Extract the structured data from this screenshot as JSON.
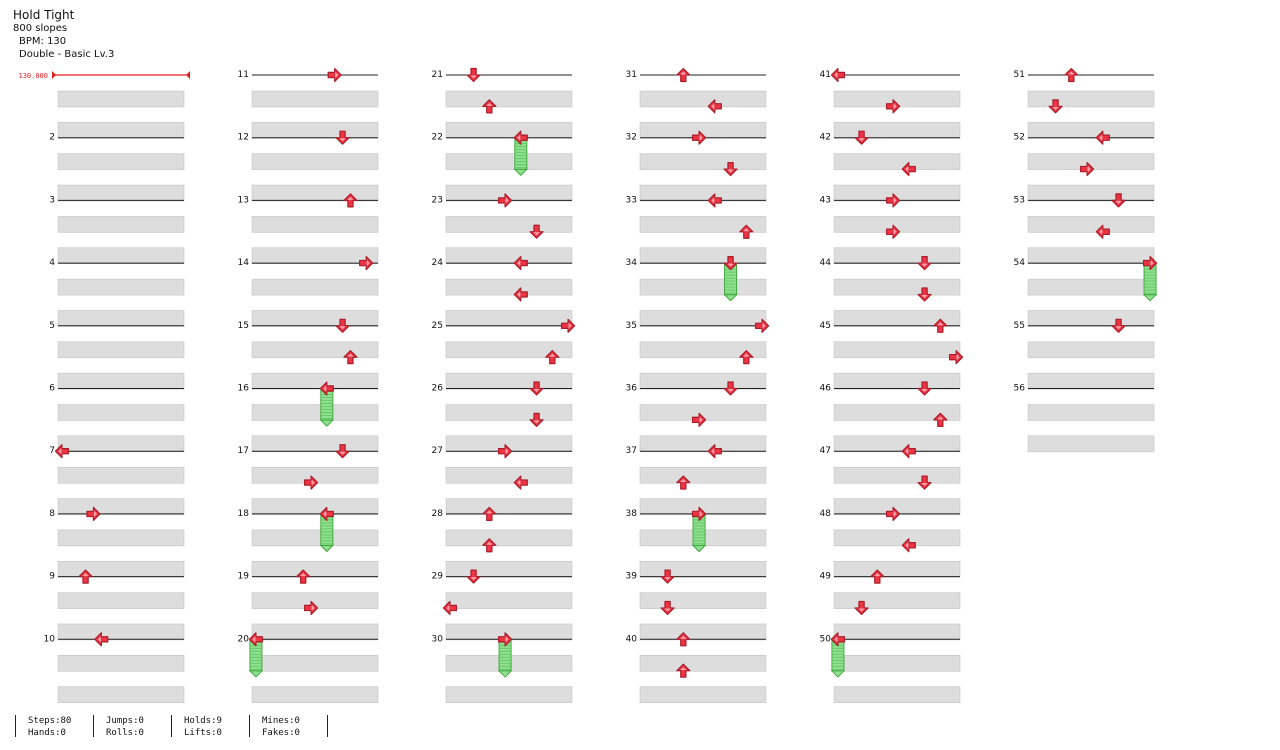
{
  "song": {
    "title": "Hold Tight",
    "subtitle": "800 slopes",
    "bpm_text": "BPM: 130",
    "difficulty_text": "Double - Basic Lv.3"
  },
  "bpm_marker": {
    "label": "130.000",
    "color": "#e02020"
  },
  "colors": {
    "arrow": "#ee3344",
    "arrow_outline": "#aa1f2b",
    "hold": "#8fe08f",
    "hold_outline": "#3ea83e",
    "band": "#dddddd",
    "beat_line": "#222222"
  },
  "measure_numbers_shown": [
    "2",
    "3",
    "4",
    "5",
    "6",
    "7",
    "8",
    "9",
    "10",
    "11",
    "12",
    "13",
    "14",
    "15",
    "16",
    "17",
    "18",
    "19",
    "20",
    "21",
    "22",
    "23",
    "24",
    "25",
    "26",
    "27",
    "28",
    "29",
    "30",
    "31",
    "32",
    "33",
    "34",
    "35",
    "36",
    "37",
    "38",
    "39",
    "40",
    "41",
    "42",
    "43",
    "44",
    "45",
    "46",
    "47",
    "48",
    "49",
    "50",
    "51",
    "52",
    "53",
    "54",
    "55",
    "56"
  ],
  "notes": [
    {
      "m": 7,
      "b": 0,
      "lane": 0,
      "dir": "left"
    },
    {
      "m": 8,
      "b": 0,
      "lane": 4,
      "dir": "right"
    },
    {
      "m": 9,
      "b": 0,
      "lane": 3,
      "dir": "up"
    },
    {
      "m": 10,
      "b": 0,
      "lane": 5,
      "dir": "left"
    },
    {
      "m": 11,
      "b": 0,
      "lane": 10,
      "dir": "right"
    },
    {
      "m": 12,
      "b": 0,
      "lane": 11,
      "dir": "down"
    },
    {
      "m": 13,
      "b": 0,
      "lane": 12,
      "dir": "up"
    },
    {
      "m": 14,
      "b": 0,
      "lane": 14,
      "dir": "right"
    },
    {
      "m": 15,
      "b": 0,
      "lane": 11,
      "dir": "down"
    },
    {
      "m": 15,
      "b": 1,
      "lane": 12,
      "dir": "up"
    },
    {
      "m": 16,
      "b": 0,
      "lane": 9,
      "dir": "left",
      "hold": 1.2
    },
    {
      "m": 17,
      "b": 0,
      "lane": 11,
      "dir": "down"
    },
    {
      "m": 17,
      "b": 1,
      "lane": 7,
      "dir": "right"
    },
    {
      "m": 18,
      "b": 0,
      "lane": 9,
      "dir": "left",
      "hold": 1.2
    },
    {
      "m": 19,
      "b": 0,
      "lane": 6,
      "dir": "up"
    },
    {
      "m": 19,
      "b": 1,
      "lane": 7,
      "dir": "right"
    },
    {
      "m": 20,
      "b": 0,
      "lane": 0,
      "dir": "left",
      "hold": 1.2
    },
    {
      "m": 21,
      "b": 0,
      "lane": 3,
      "dir": "down"
    },
    {
      "m": 21,
      "b": 1,
      "lane": 5,
      "dir": "up"
    },
    {
      "m": 22,
      "b": 0,
      "lane": 9,
      "dir": "left",
      "hold": 1.2
    },
    {
      "m": 23,
      "b": 0,
      "lane": 7,
      "dir": "right"
    },
    {
      "m": 23,
      "b": 1,
      "lane": 11,
      "dir": "down"
    },
    {
      "m": 24,
      "b": 0,
      "lane": 9,
      "dir": "left"
    },
    {
      "m": 24,
      "b": 1,
      "lane": 9,
      "dir": "left"
    },
    {
      "m": 25,
      "b": 0,
      "lane": 15,
      "dir": "right"
    },
    {
      "m": 25,
      "b": 1,
      "lane": 13,
      "dir": "up"
    },
    {
      "m": 26,
      "b": 0,
      "lane": 11,
      "dir": "down"
    },
    {
      "m": 26,
      "b": 1,
      "lane": 11,
      "dir": "down"
    },
    {
      "m": 27,
      "b": 0,
      "lane": 7,
      "dir": "right"
    },
    {
      "m": 27,
      "b": 1,
      "lane": 9,
      "dir": "left"
    },
    {
      "m": 28,
      "b": 0,
      "lane": 5,
      "dir": "up"
    },
    {
      "m": 28,
      "b": 1,
      "lane": 5,
      "dir": "up"
    },
    {
      "m": 29,
      "b": 0,
      "lane": 3,
      "dir": "down"
    },
    {
      "m": 29,
      "b": 1,
      "lane": 0,
      "dir": "left"
    },
    {
      "m": 30,
      "b": 0,
      "lane": 7,
      "dir": "right",
      "hold": 1.2
    },
    {
      "m": 31,
      "b": 0,
      "lane": 5,
      "dir": "up"
    },
    {
      "m": 31,
      "b": 1,
      "lane": 9,
      "dir": "left"
    },
    {
      "m": 32,
      "b": 0,
      "lane": 7,
      "dir": "right"
    },
    {
      "m": 32,
      "b": 1,
      "lane": 11,
      "dir": "down"
    },
    {
      "m": 33,
      "b": 0,
      "lane": 9,
      "dir": "left"
    },
    {
      "m": 33,
      "b": 1,
      "lane": 13,
      "dir": "up"
    },
    {
      "m": 34,
      "b": 0,
      "lane": 11,
      "dir": "down",
      "hold": 1.2
    },
    {
      "m": 35,
      "b": 0,
      "lane": 15,
      "dir": "right"
    },
    {
      "m": 35,
      "b": 1,
      "lane": 13,
      "dir": "up"
    },
    {
      "m": 36,
      "b": 0,
      "lane": 11,
      "dir": "down"
    },
    {
      "m": 36,
      "b": 1,
      "lane": 7,
      "dir": "right"
    },
    {
      "m": 37,
      "b": 0,
      "lane": 9,
      "dir": "left"
    },
    {
      "m": 37,
      "b": 1,
      "lane": 5,
      "dir": "up"
    },
    {
      "m": 38,
      "b": 0,
      "lane": 7,
      "dir": "right",
      "hold": 1.2
    },
    {
      "m": 39,
      "b": 0,
      "lane": 3,
      "dir": "down"
    },
    {
      "m": 39,
      "b": 1,
      "lane": 3,
      "dir": "down"
    },
    {
      "m": 40,
      "b": 0,
      "lane": 5,
      "dir": "up"
    },
    {
      "m": 40,
      "b": 1,
      "lane": 5,
      "dir": "up"
    },
    {
      "m": 41,
      "b": 0,
      "lane": 0,
      "dir": "left"
    },
    {
      "m": 41,
      "b": 1,
      "lane": 7,
      "dir": "right"
    },
    {
      "m": 42,
      "b": 0,
      "lane": 3,
      "dir": "down"
    },
    {
      "m": 42,
      "b": 1,
      "lane": 9,
      "dir": "left"
    },
    {
      "m": 43,
      "b": 0,
      "lane": 7,
      "dir": "right"
    },
    {
      "m": 43,
      "b": 1,
      "lane": 7,
      "dir": "right"
    },
    {
      "m": 44,
      "b": 0,
      "lane": 11,
      "dir": "down"
    },
    {
      "m": 44,
      "b": 1,
      "lane": 11,
      "dir": "down"
    },
    {
      "m": 45,
      "b": 0,
      "lane": 13,
      "dir": "up"
    },
    {
      "m": 45,
      "b": 1,
      "lane": 15,
      "dir": "right"
    },
    {
      "m": 46,
      "b": 0,
      "lane": 11,
      "dir": "down"
    },
    {
      "m": 46,
      "b": 1,
      "lane": 13,
      "dir": "up"
    },
    {
      "m": 47,
      "b": 0,
      "lane": 9,
      "dir": "left"
    },
    {
      "m": 47,
      "b": 1,
      "lane": 11,
      "dir": "down"
    },
    {
      "m": 48,
      "b": 0,
      "lane": 7,
      "dir": "right"
    },
    {
      "m": 48,
      "b": 1,
      "lane": 9,
      "dir": "left"
    },
    {
      "m": 49,
      "b": 0,
      "lane": 5,
      "dir": "up"
    },
    {
      "m": 49,
      "b": 1,
      "lane": 3,
      "dir": "down"
    },
    {
      "m": 50,
      "b": 0,
      "lane": 0,
      "dir": "left",
      "hold": 1.2
    },
    {
      "m": 51,
      "b": 0,
      "lane": 5,
      "dir": "up"
    },
    {
      "m": 51,
      "b": 1,
      "lane": 3,
      "dir": "down"
    },
    {
      "m": 52,
      "b": 0,
      "lane": 9,
      "dir": "left"
    },
    {
      "m": 52,
      "b": 1,
      "lane": 7,
      "dir": "right"
    },
    {
      "m": 53,
      "b": 0,
      "lane": 11,
      "dir": "down"
    },
    {
      "m": 53,
      "b": 1,
      "lane": 9,
      "dir": "left"
    },
    {
      "m": 54,
      "b": 0,
      "lane": 15,
      "dir": "right",
      "hold": 1.2
    },
    {
      "m": 55,
      "b": 0,
      "lane": 11,
      "dir": "down"
    }
  ],
  "stats": [
    {
      "top": "Steps:80",
      "bottom": "Hands:0"
    },
    {
      "top": "Jumps:0",
      "bottom": "Rolls:0"
    },
    {
      "top": "Holds:9",
      "bottom": "Lifts:0"
    },
    {
      "top": "Mines:0",
      "bottom": "Fakes:0"
    }
  ]
}
